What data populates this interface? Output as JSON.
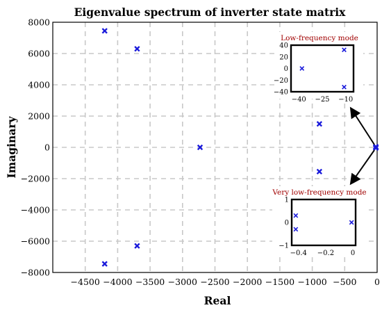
{
  "chart_data": [
    {
      "type": "scatter",
      "title": "Eigenvalue spectrum of inverter state matrix",
      "xlabel": "Real",
      "ylabel": "Imaginary",
      "xlim": [
        -5000,
        0
      ],
      "ylim": [
        -8000,
        8000
      ],
      "xticks": [
        -4500,
        -4000,
        -3500,
        -3000,
        -2500,
        -2000,
        -1500,
        -1000,
        -500,
        0
      ],
      "xtick_labels": [
        "−4500",
        "−4000",
        "−3500",
        "−3000",
        "−2500",
        "−2000",
        "−1500",
        "−1000",
        "−500",
        "0"
      ],
      "yticks": [
        8000,
        6000,
        4000,
        2000,
        0,
        -2000,
        -4000,
        -6000,
        -8000
      ],
      "ytick_labels": [
        "8000",
        "6000",
        "4000",
        "2000",
        "0",
        "−2000",
        "−4000",
        "−6000",
        "−8000"
      ],
      "grid": true,
      "marker_color": "#1a1adb",
      "points": [
        {
          "x": -4200,
          "y": 7450
        },
        {
          "x": -3700,
          "y": 6300
        },
        {
          "x": -2730,
          "y": 0
        },
        {
          "x": -890,
          "y": 1500
        },
        {
          "x": -890,
          "y": -1550
        },
        {
          "x": -3700,
          "y": -6300
        },
        {
          "x": -4200,
          "y": -7450
        },
        {
          "x": -20,
          "y": 40
        },
        {
          "x": -20,
          "y": 0
        },
        {
          "x": -20,
          "y": -40
        }
      ]
    },
    {
      "type": "scatter",
      "title": "Low-frequency mode",
      "xlim": [
        -45,
        -5
      ],
      "ylim": [
        -40,
        40
      ],
      "xticks": [
        -40,
        -25,
        -10
      ],
      "xtick_labels": [
        "−40",
        "−25",
        "−10"
      ],
      "yticks": [
        40,
        20,
        0,
        -20,
        -40
      ],
      "ytick_labels": [
        "40",
        "20",
        "0",
        "−20",
        "−40"
      ],
      "points": [
        {
          "x": -38,
          "y": 0
        },
        {
          "x": -11,
          "y": 32
        },
        {
          "x": -11,
          "y": -32
        }
      ]
    },
    {
      "type": "scatter",
      "title": "Very low-frequency mode",
      "xlim": [
        -0.45,
        0.02
      ],
      "ylim": [
        -1,
        1
      ],
      "xticks": [
        -0.4,
        -0.2,
        0
      ],
      "xtick_labels": [
        "−0.4",
        "−0.2",
        "0"
      ],
      "yticks": [
        1,
        0,
        -1
      ],
      "ytick_labels": [
        "1",
        "0",
        "−1"
      ],
      "points": [
        {
          "x": -0.42,
          "y": 0.3
        },
        {
          "x": -0.42,
          "y": -0.3
        },
        {
          "x": -0.01,
          "y": 0
        }
      ]
    }
  ]
}
